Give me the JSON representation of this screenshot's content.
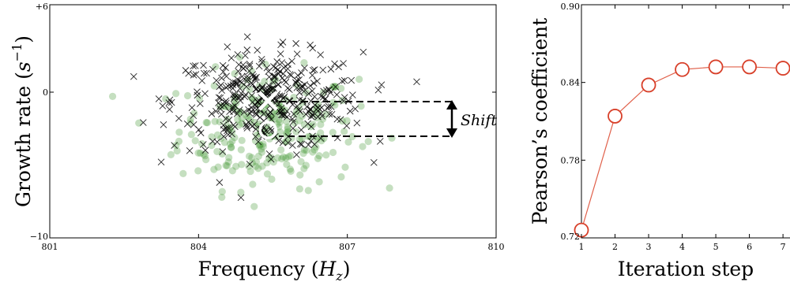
{
  "chart_data": [
    {
      "type": "scatter",
      "xlabel_text": "Frequency",
      "xlabel_sym": "H",
      "xlabel_sub": "z",
      "ylabel_text": "Growth rate",
      "ylabel_sym": "s",
      "ylabel_exp": "−1",
      "xlim": [
        801,
        810
      ],
      "ylim": [
        -10,
        6
      ],
      "x_ticks": [
        "801",
        "804",
        "807",
        "810"
      ],
      "y_ticks": [
        {
          "label": "−10",
          "v": -10
        },
        {
          "label": "0",
          "v": 0
        },
        {
          "label": "+6",
          "v": 6
        }
      ],
      "annotation": "Shift",
      "colors": {
        "green": "#4a9a3a",
        "cross": "#000000",
        "marker": "#ffffff"
      },
      "series": [
        {
          "marker": "circle",
          "center": [
            805.4,
            -2.6
          ],
          "spread": [
            0.9,
            2.0
          ],
          "count": 260
        },
        {
          "marker": "x",
          "center": [
            805.4,
            -0.6
          ],
          "spread": [
            0.95,
            1.65
          ],
          "count": 380
        }
      ],
      "mean_markers": [
        {
          "marker": "x",
          "x": 805.4,
          "y": -0.6
        },
        {
          "marker": "circle",
          "x": 805.4,
          "y": -2.6
        }
      ]
    },
    {
      "type": "line",
      "xlabel": "Iteration step",
      "ylabel": "Pearson’s coefficient",
      "x": [
        1,
        2,
        3,
        4,
        5,
        6,
        7
      ],
      "y": [
        0.726,
        0.814,
        0.838,
        0.85,
        0.852,
        0.852,
        0.851
      ],
      "x_ticks": [
        "1",
        "2",
        "3",
        "4",
        "5",
        "6",
        "7"
      ],
      "y_ticks": [
        "0.72",
        "0.78",
        "0.84",
        "0.90"
      ],
      "xlim": [
        1,
        7.35
      ],
      "ylim": [
        0.72,
        0.9
      ],
      "colors": {
        "line": "#e0604a",
        "marker_face": "#ffffff",
        "marker_edge": "#d8402a"
      }
    }
  ]
}
